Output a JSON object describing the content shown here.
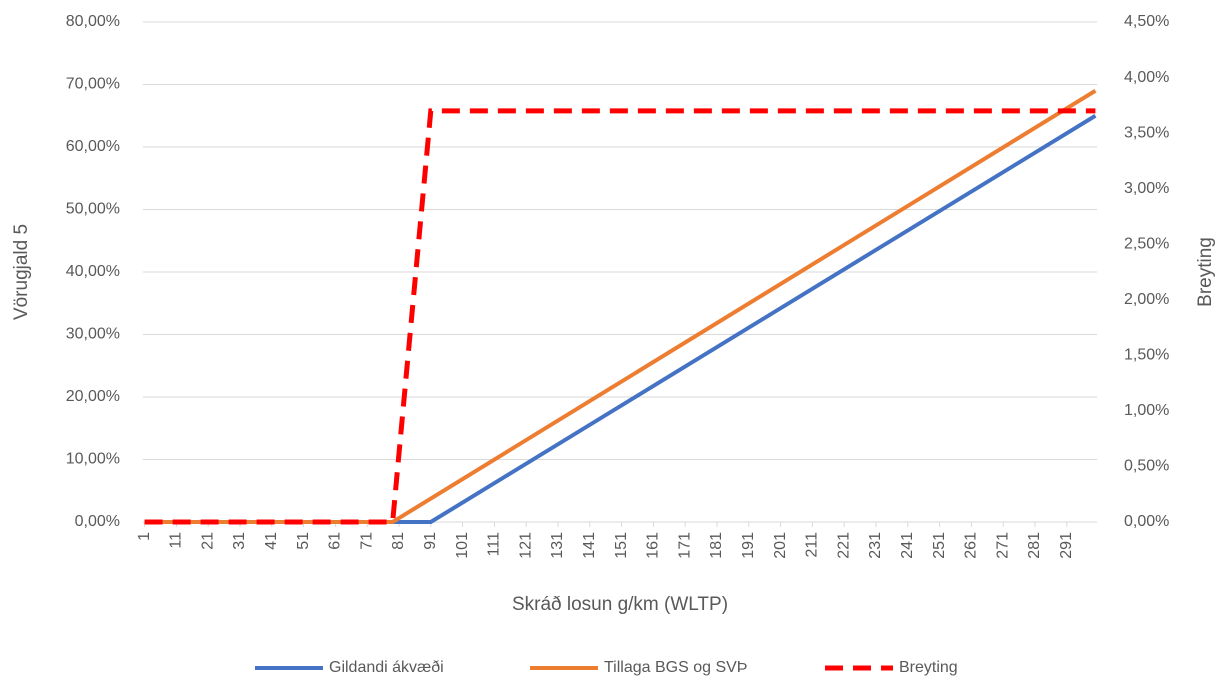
{
  "chart_data": {
    "type": "line",
    "x_label": "Skráð losun g/km (WLTP)",
    "y_label": "Vörugjald 5",
    "y2_label": "Breyting",
    "xlim": [
      0.5,
      300.5
    ],
    "xticks": [
      1,
      11,
      21,
      31,
      41,
      51,
      61,
      71,
      81,
      91,
      101,
      111,
      121,
      131,
      141,
      151,
      161,
      171,
      181,
      191,
      201,
      211,
      221,
      231,
      241,
      251,
      261,
      271,
      281,
      291
    ],
    "ylim": [
      0,
      80
    ],
    "yticks": [
      {
        "value": 0,
        "label": "0,00%"
      },
      {
        "value": 10,
        "label": "10,00%"
      },
      {
        "value": 20,
        "label": "20,00%"
      },
      {
        "value": 30,
        "label": "30,00%"
      },
      {
        "value": 40,
        "label": "40,00%"
      },
      {
        "value": 50,
        "label": "50,00%"
      },
      {
        "value": 60,
        "label": "60,00%"
      },
      {
        "value": 70,
        "label": "70,00%"
      },
      {
        "value": 80,
        "label": "80,00%"
      }
    ],
    "y2lim": [
      0,
      4.5
    ],
    "y2ticks": [
      {
        "value": 0,
        "label": "0,00%"
      },
      {
        "value": 0.5,
        "label": "0,50%"
      },
      {
        "value": 1,
        "label": "1,00%"
      },
      {
        "value": 1.5,
        "label": "1,50%"
      },
      {
        "value": 2,
        "label": "2,00%"
      },
      {
        "value": 2.5,
        "label": "2,50%"
      },
      {
        "value": 3,
        "label": "3,00%"
      },
      {
        "value": 3.5,
        "label": "3,50%"
      },
      {
        "value": 4,
        "label": "4,00%"
      },
      {
        "value": 4.5,
        "label": "4,50%"
      }
    ],
    "grid": true,
    "series": [
      {
        "name": "Gildandi ákvæði",
        "color": "#4472c4",
        "dash": false,
        "x": [
          1,
          91,
          300
        ],
        "values": [
          0,
          0,
          65
        ]
      },
      {
        "name": "Tillaga BGS og SVÞ",
        "color": "#ed7d31",
        "dash": false,
        "x": [
          1,
          79,
          300
        ],
        "values": [
          0,
          0,
          69
        ]
      },
      {
        "name": "Breyting",
        "color": "#ff0000",
        "dash": true,
        "axis": "y2",
        "x": [
          1,
          79,
          91,
          300
        ],
        "values": [
          0,
          0,
          3.7,
          3.7
        ]
      }
    ]
  }
}
